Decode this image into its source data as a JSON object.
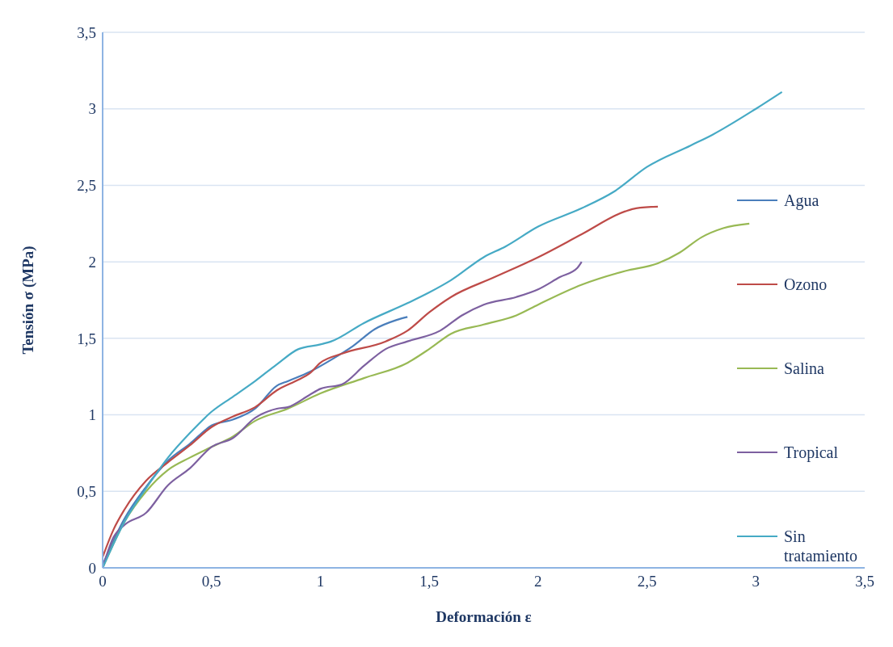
{
  "chart_data": {
    "type": "line",
    "xlabel": "Deformación ε",
    "ylabel": "Tensión σ (MPa)",
    "xlim": [
      0,
      3.5
    ],
    "xticks": [
      0,
      {
        "value": 0.5,
        "label": "0,5"
      },
      1,
      {
        "value": 1.5,
        "label": "1,5"
      },
      2,
      {
        "value": 2.5,
        "label": "2,5"
      },
      3,
      {
        "value": 3.5,
        "label": "3,5"
      }
    ],
    "ylim": [
      0,
      3.5
    ],
    "yticks": [
      0,
      {
        "value": 0.5,
        "label": "0,5"
      },
      1,
      {
        "value": 1.5,
        "label": "1,5"
      },
      2,
      {
        "value": 2.5,
        "label": "2,5"
      },
      3,
      {
        "value": 3.5,
        "label": "3,5"
      }
    ],
    "grid": "y",
    "legend": "right",
    "marker": "none",
    "line_style": "solid",
    "series": [
      {
        "name": "Agua",
        "color": "#4a7ebb",
        "x": [
          0,
          0.1,
          0.2,
          0.3,
          0.4,
          0.5,
          0.6,
          0.7,
          0.8,
          0.85,
          0.95,
          1.05,
          1.15,
          1.25,
          1.35,
          1.4
        ],
        "values": [
          0.02,
          0.32,
          0.53,
          0.7,
          0.81,
          0.93,
          0.97,
          1.04,
          1.19,
          1.22,
          1.28,
          1.36,
          1.45,
          1.56,
          1.62,
          1.64
        ]
      },
      {
        "name": "Ozono",
        "color": "#be4b48",
        "x": [
          0,
          0.05,
          0.1,
          0.2,
          0.3,
          0.4,
          0.5,
          0.6,
          0.7,
          0.8,
          0.9,
          0.95,
          1.0,
          1.1,
          1.3,
          1.4,
          1.5,
          1.6,
          1.8,
          2.0,
          2.2,
          2.4,
          2.45,
          2.55
        ],
        "values": [
          0.07,
          0.25,
          0.38,
          0.57,
          0.69,
          0.8,
          0.92,
          0.99,
          1.05,
          1.16,
          1.23,
          1.27,
          1.34,
          1.4,
          1.48,
          1.55,
          1.67,
          1.77,
          1.9,
          2.03,
          2.18,
          2.33,
          2.35,
          2.36
        ]
      },
      {
        "name": "Salina",
        "color": "#98b954",
        "x": [
          0,
          0.1,
          0.2,
          0.3,
          0.4,
          0.5,
          0.6,
          0.7,
          0.85,
          1.0,
          1.2,
          1.4,
          1.5,
          1.6,
          1.75,
          1.9,
          2.0,
          2.2,
          2.4,
          2.55,
          2.65,
          2.75,
          2.85,
          2.97
        ],
        "values": [
          0,
          0.3,
          0.5,
          0.64,
          0.72,
          0.79,
          0.86,
          0.96,
          1.04,
          1.14,
          1.24,
          1.34,
          1.43,
          1.53,
          1.59,
          1.65,
          1.72,
          1.85,
          1.94,
          1.99,
          2.06,
          2.16,
          2.22,
          2.25
        ]
      },
      {
        "name": "Tropical",
        "color": "#7d60a0",
        "x": [
          0,
          0.05,
          0.1,
          0.2,
          0.3,
          0.4,
          0.5,
          0.6,
          0.7,
          0.8,
          0.85,
          0.95,
          1.0,
          1.1,
          1.2,
          1.3,
          1.4,
          1.55,
          1.65,
          1.75,
          1.9,
          2.0,
          2.1,
          2.18,
          2.2
        ],
        "values": [
          0,
          0.2,
          0.28,
          0.36,
          0.54,
          0.65,
          0.79,
          0.85,
          0.98,
          1.04,
          1.05,
          1.13,
          1.17,
          1.2,
          1.32,
          1.43,
          1.48,
          1.55,
          1.65,
          1.72,
          1.77,
          1.82,
          1.9,
          1.96,
          2.0
        ]
      },
      {
        "name": "Sin tratamiento",
        "color": "#46aac5",
        "x": [
          0,
          0.1,
          0.2,
          0.3,
          0.4,
          0.5,
          0.6,
          0.7,
          0.8,
          0.9,
          1.0,
          1.05,
          1.2,
          1.4,
          1.5,
          1.6,
          1.75,
          1.85,
          2.0,
          2.2,
          2.35,
          2.5,
          2.7,
          2.8,
          3.0,
          3.12
        ],
        "values": [
          0,
          0.3,
          0.52,
          0.72,
          0.88,
          1.02,
          1.12,
          1.22,
          1.33,
          1.43,
          1.46,
          1.48,
          1.6,
          1.73,
          1.8,
          1.88,
          2.03,
          2.1,
          2.23,
          2.35,
          2.46,
          2.62,
          2.76,
          2.83,
          3.0,
          3.11
        ]
      }
    ]
  }
}
